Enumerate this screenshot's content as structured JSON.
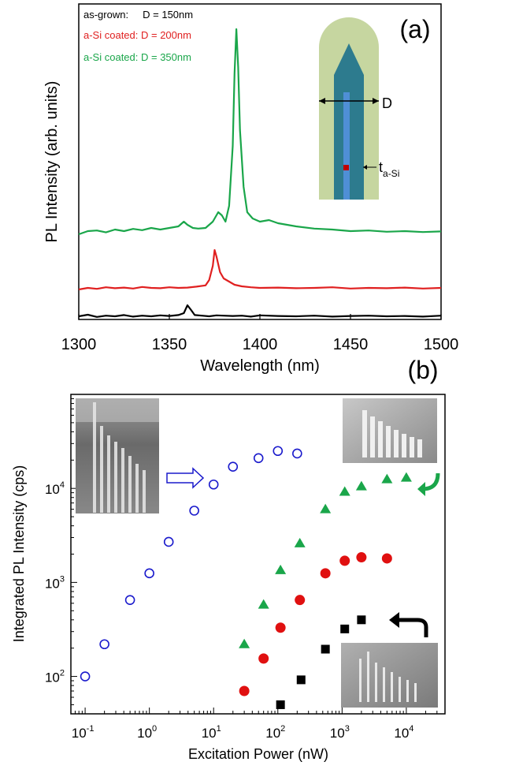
{
  "chart_data": [
    {
      "type": "line",
      "panel_label": "(a)",
      "xlabel": "Wavelength (nm)",
      "ylabel": "PL Intensity (arb. units)",
      "xlim": [
        1300,
        1500
      ],
      "ylim": [
        0,
        1
      ],
      "xticks": [
        "1300",
        "1350",
        "1400",
        "1450",
        "1500"
      ],
      "legend_placement": "top-left",
      "series": [
        {
          "name": "as-grown:     D = 150nm",
          "color": "#000000",
          "x": [
            1300,
            1305,
            1310,
            1315,
            1320,
            1325,
            1330,
            1335,
            1340,
            1345,
            1350,
            1355,
            1358,
            1360,
            1362,
            1364,
            1368,
            1372,
            1376,
            1380,
            1385,
            1390,
            1395,
            1400,
            1410,
            1420,
            1430,
            1440,
            1450,
            1460,
            1470,
            1480,
            1490,
            1500
          ],
          "y": [
            0.01,
            0.015,
            0.008,
            0.012,
            0.01,
            0.014,
            0.009,
            0.012,
            0.01,
            0.013,
            0.011,
            0.014,
            0.02,
            0.045,
            0.03,
            0.014,
            0.012,
            0.01,
            0.013,
            0.012,
            0.011,
            0.012,
            0.009,
            0.013,
            0.011,
            0.01,
            0.012,
            0.009,
            0.011,
            0.012,
            0.01,
            0.011,
            0.009,
            0.012
          ]
        },
        {
          "name": "a-Si coated: D = 200nm",
          "color": "#e02020",
          "x": [
            1300,
            1305,
            1310,
            1315,
            1320,
            1325,
            1330,
            1335,
            1340,
            1345,
            1350,
            1355,
            1360,
            1365,
            1370,
            1372,
            1374,
            1375,
            1376,
            1378,
            1380,
            1383,
            1386,
            1390,
            1395,
            1400,
            1410,
            1420,
            1430,
            1440,
            1450,
            1460,
            1470,
            1480,
            1490,
            1500
          ],
          "y": [
            0.095,
            0.1,
            0.097,
            0.102,
            0.099,
            0.101,
            0.098,
            0.103,
            0.1,
            0.099,
            0.102,
            0.1,
            0.101,
            0.104,
            0.108,
            0.125,
            0.17,
            0.22,
            0.2,
            0.15,
            0.13,
            0.12,
            0.11,
            0.105,
            0.102,
            0.1,
            0.101,
            0.099,
            0.1,
            0.102,
            0.098,
            0.1,
            0.099,
            0.101,
            0.098,
            0.1
          ]
        },
        {
          "name": "a-Si coated: D = 350nm",
          "color": "#1aa64a",
          "x": [
            1300,
            1305,
            1310,
            1315,
            1320,
            1325,
            1330,
            1335,
            1340,
            1345,
            1350,
            1355,
            1358,
            1360,
            1363,
            1366,
            1370,
            1374,
            1377,
            1379,
            1381,
            1383,
            1385,
            1386,
            1387,
            1388,
            1389,
            1391,
            1393,
            1396,
            1400,
            1405,
            1410,
            1420,
            1430,
            1440,
            1450,
            1460,
            1470,
            1480,
            1490,
            1500
          ],
          "y": [
            0.27,
            0.28,
            0.282,
            0.276,
            0.285,
            0.28,
            0.287,
            0.283,
            0.29,
            0.285,
            0.29,
            0.295,
            0.31,
            0.3,
            0.29,
            0.288,
            0.29,
            0.31,
            0.34,
            0.33,
            0.31,
            0.36,
            0.55,
            0.78,
            0.92,
            0.8,
            0.6,
            0.42,
            0.34,
            0.32,
            0.31,
            0.315,
            0.305,
            0.295,
            0.288,
            0.285,
            0.28,
            0.282,
            0.278,
            0.28,
            0.277,
            0.279
          ]
        }
      ],
      "inset": {
        "label_d": "D",
        "label_t": "t",
        "label_t_sub": "a-Si"
      }
    },
    {
      "type": "scatter",
      "panel_label": "(b)",
      "xlabel": "Excitation Power (nW)",
      "ylabel": "Integrated PL Intensity (cps)",
      "xscale": "log",
      "yscale": "log",
      "xlim": [
        0.06,
        40000
      ],
      "ylim": [
        40,
        100000
      ],
      "xticks": [
        {
          "base": "10",
          "exp": "-1",
          "value": 0.1
        },
        {
          "base": "10",
          "exp": "0",
          "value": 1
        },
        {
          "base": "10",
          "exp": "1",
          "value": 10
        },
        {
          "base": "10",
          "exp": "2",
          "value": 100
        },
        {
          "base": "10",
          "exp": "3",
          "value": 1000
        },
        {
          "base": "10",
          "exp": "4",
          "value": 10000
        }
      ],
      "yticks": [
        {
          "base": "10",
          "exp": "2",
          "value": 100
        },
        {
          "base": "10",
          "exp": "3",
          "value": 1000
        },
        {
          "base": "10",
          "exp": "4",
          "value": 10000
        }
      ],
      "series": [
        {
          "marker": "open-circle",
          "color": "#1a1acc",
          "x": [
            0.1,
            0.2,
            0.5,
            1,
            2,
            5,
            10,
            20,
            50,
            100,
            200
          ],
          "y": [
            100,
            220,
            650,
            1250,
            2700,
            5800,
            11000,
            17000,
            21000,
            25000,
            23500
          ]
        },
        {
          "marker": "triangle",
          "color": "#1aa64a",
          "x": [
            30,
            60,
            110,
            220,
            550,
            1100,
            2000,
            5000,
            10000
          ],
          "y": [
            220,
            580,
            1350,
            2600,
            6000,
            9200,
            10500,
            12500,
            13000
          ]
        },
        {
          "marker": "filled-circle",
          "color": "#e01010",
          "x": [
            30,
            60,
            110,
            220,
            550,
            1100,
            2000,
            5000
          ],
          "y": [
            70,
            155,
            330,
            650,
            1250,
            1700,
            1850,
            1800
          ]
        },
        {
          "marker": "square",
          "color": "#000000",
          "x": [
            110,
            230,
            550,
            1100,
            2000
          ],
          "y": [
            50,
            92,
            195,
            320,
            400
          ]
        }
      ]
    }
  ]
}
